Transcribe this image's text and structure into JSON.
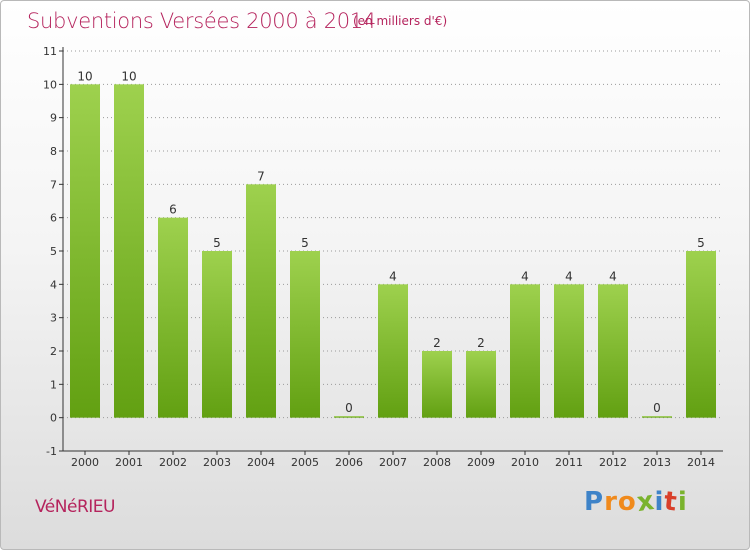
{
  "title": "Subventions Versées 2000 à 2014",
  "subtitle": "(en milliers d'€)",
  "commune": "VéNéRIEU",
  "logo": {
    "letters": [
      "P",
      "r",
      "o",
      "x",
      "i",
      "t",
      "i"
    ],
    "colors": [
      "#3e83c8",
      "#f08a1c",
      "#f08a1c",
      "#7ab32d",
      "#3e83c8",
      "#d93f2a",
      "#7ab32d"
    ]
  },
  "colors": {
    "title": "#b5245d",
    "bar_top": "#9ed14e",
    "bar_bottom": "#62a012",
    "axis": "#333333",
    "grid": "#9a9a9a"
  },
  "chart_data": {
    "type": "bar",
    "categories": [
      "2000",
      "2001",
      "2002",
      "2003",
      "2004",
      "2005",
      "2006",
      "2007",
      "2008",
      "2009",
      "2010",
      "2011",
      "2012",
      "2013",
      "2014"
    ],
    "values": [
      10,
      10,
      6,
      5,
      7,
      5,
      0,
      4,
      2,
      2,
      4,
      4,
      4,
      0,
      5
    ],
    "data_labels": [
      "10",
      "10",
      "6",
      "5",
      "7",
      "5",
      "0",
      "4",
      "2",
      "2",
      "4",
      "4",
      "4",
      "0",
      "5"
    ],
    "y_ticks": [
      "-1",
      "0",
      "1",
      "2",
      "3",
      "4",
      "5",
      "6",
      "7",
      "8",
      "9",
      "10",
      "11"
    ],
    "ylim": [
      -1,
      11
    ],
    "grid": "horizontal dashed",
    "xlabel": "",
    "ylabel": ""
  }
}
